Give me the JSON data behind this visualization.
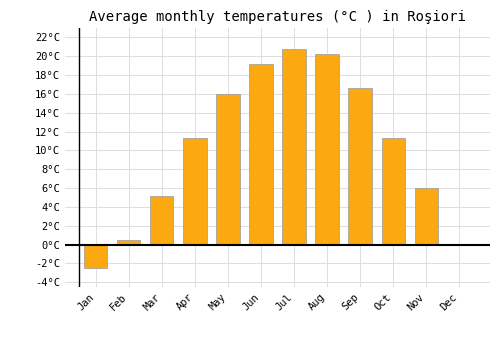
{
  "title": "Average monthly temperatures (°C ) in Roşiori",
  "months": [
    "Jan",
    "Feb",
    "Mar",
    "Apr",
    "May",
    "Jun",
    "Jul",
    "Aug",
    "Sep",
    "Oct",
    "Nov",
    "Dec"
  ],
  "values": [
    -2.5,
    0.5,
    5.2,
    11.3,
    16.0,
    19.2,
    20.8,
    20.2,
    16.6,
    11.3,
    6.0,
    0.0
  ],
  "bar_color": "#FCA811",
  "bar_edge_color": "#999999",
  "ylim": [
    -4.5,
    23
  ],
  "yticks": [
    -4,
    -2,
    0,
    2,
    4,
    6,
    8,
    10,
    12,
    14,
    16,
    18,
    20,
    22
  ],
  "ytick_labels": [
    "-4°C",
    "-2°C",
    "0°C",
    "2°C",
    "4°C",
    "6°C",
    "8°C",
    "10°C",
    "12°C",
    "14°C",
    "16°C",
    "18°C",
    "20°C",
    "22°C"
  ],
  "background_color": "#FFFFFF",
  "grid_color": "#DDDDDD",
  "title_fontsize": 10,
  "tick_fontsize": 7.5,
  "bar_width": 0.7
}
